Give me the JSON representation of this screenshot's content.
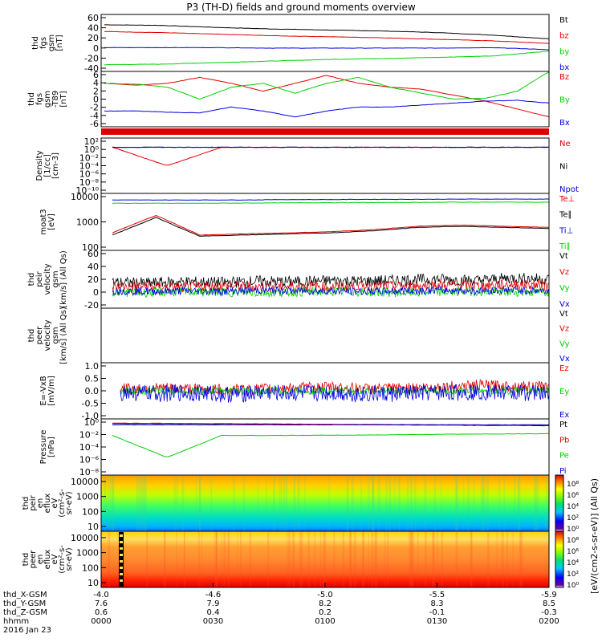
{
  "title": "P3 (TH-D) fields and ground moments overview",
  "date_label": "2016 Jan 23",
  "colorbar_label": "[eV/(cm2-s-sr-eV)] (All Qs)",
  "colors": {
    "black": "#000000",
    "red": "#e00000",
    "green": "#00d000",
    "blue": "#0000e0",
    "frame": "#000000"
  },
  "chart_data": {
    "type": "line",
    "time_ticks": [
      "0000",
      "0030",
      "0100",
      "0130",
      "0200"
    ],
    "ephemeris": {
      "rows": [
        {
          "label": "thd_X-GSM",
          "values": [
            "-4.0",
            "-4.6",
            "-5.0",
            "-5.5",
            "-5.9"
          ]
        },
        {
          "label": "thd_Y-GSM",
          "values": [
            "7.6",
            "7.9",
            "8.2",
            "8.3",
            "8.5"
          ]
        },
        {
          "label": "thd_Z-GSM",
          "values": [
            "0.6",
            "0.4",
            "0.2",
            "-0.1",
            "-0.3"
          ]
        },
        {
          "label": "hhmm",
          "values": [
            "0000",
            "0030",
            "0100",
            "0130",
            "0200"
          ]
        }
      ]
    },
    "panels": [
      {
        "id": "fgs",
        "ylabel": [
          "thd",
          "fgs",
          "gsm",
          "[nT]"
        ],
        "ticks": [
          "60",
          "40",
          "20",
          "0",
          "-20",
          "-40"
        ],
        "ylim": [
          -45,
          65
        ],
        "series": [
          {
            "name": "Bt",
            "color": "black",
            "y": [
              45,
              44,
              40,
              37,
              35,
              33,
              30,
              25,
              18
            ]
          },
          {
            "name": "bz",
            "color": "red",
            "y": [
              32,
              30,
              27,
              24,
              22,
              20,
              17,
              14,
              9
            ]
          },
          {
            "name": "by",
            "color": "green",
            "y": [
              -32,
              -31,
              -28,
              -25,
              -22,
              -20,
              -18,
              -15,
              -6
            ]
          },
          {
            "name": "bx",
            "color": "blue",
            "y": [
              1,
              1,
              1,
              0,
              0,
              0,
              0,
              1,
              -3
            ]
          }
        ]
      },
      {
        "id": "fgs_dsub",
        "ylabel": [
          "thd",
          "fgs",
          "gsm",
          "-T89",
          "[nT]"
        ],
        "ticks": [
          "6",
          "4",
          "2",
          "0",
          "-2",
          "-4",
          "-6"
        ],
        "ylim": [
          -7,
          7
        ],
        "series": [
          {
            "name": "Bz",
            "color": "red",
            "y": [
              4,
              3.5,
              4,
              5.5,
              4,
              2,
              4,
              6,
              4,
              3,
              2.5,
              1,
              -0.5,
              -2.5,
              -4.5
            ]
          },
          {
            "name": "By",
            "color": "green",
            "y": [
              4,
              3.8,
              3,
              0,
              3,
              4,
              1.5,
              4,
              5.5,
              3,
              1.5,
              0,
              0.2,
              2,
              7
            ]
          },
          {
            "name": "Bx",
            "color": "blue",
            "y": [
              -3,
              -3,
              -3.3,
              -3.5,
              -2,
              -3,
              -4.5,
              -3,
              -2,
              -2,
              -1.5,
              -1,
              -0.5,
              -0.3,
              -1
            ]
          }
        ]
      },
      {
        "id": "density",
        "ylabel": [
          "Density",
          "[1/cc]",
          "[cm-3]"
        ],
        "ticks": [
          "10²",
          "10⁰",
          "10⁻²",
          "10⁻⁴",
          "10⁻⁶",
          "10⁻⁸",
          "10⁻¹⁰"
        ],
        "ylim": [
          -10,
          2
        ],
        "series": [
          {
            "name": "Ne",
            "color": "red",
            "y": [
              0,
              -4,
              0,
              0,
              0,
              0,
              0,
              0,
              0
            ]
          },
          {
            "name": "Ni",
            "color": "black",
            "y": [
              0,
              0,
              0,
              0,
              0,
              0,
              0,
              0,
              0
            ]
          },
          {
            "name": "Npot",
            "color": "blue",
            "y": [
              0,
              0,
              0,
              0,
              0,
              0,
              0,
              0,
              0
            ]
          }
        ]
      },
      {
        "id": "temperature",
        "ylabel": [
          "moat3",
          "[eV]"
        ],
        "ticks": [
          "10000",
          "1000",
          "100"
        ],
        "ylim": [
          1.5,
          4.1
        ],
        "series": [
          {
            "name": "Te⊥",
            "color": "red",
            "y": [
              2.3,
              3.1,
              2.2,
              2.25,
              2.3,
              2.35,
              2.45,
              2.6,
              2.65,
              2.6,
              2.55
            ]
          },
          {
            "name": "Te∥",
            "color": "black",
            "y": [
              2.2,
              3.0,
              2.15,
              2.2,
              2.25,
              2.3,
              2.4,
              2.55,
              2.6,
              2.55,
              2.5
            ]
          },
          {
            "name": "Ti⊥",
            "color": "blue",
            "y": [
              3.8,
              3.8,
              3.8,
              3.8,
              3.82,
              3.82,
              3.83,
              3.83,
              3.84,
              3.84,
              3.84
            ]
          },
          {
            "name": "Ti∥",
            "color": "green",
            "y": [
              3.65,
              3.65,
              3.65,
              3.66,
              3.67,
              3.68,
              3.68,
              3.69,
              3.7,
              3.7,
              3.7
            ]
          }
        ]
      },
      {
        "id": "peir_velocity",
        "ylabel": [
          "thd",
          "peir",
          "velocity",
          "gsm",
          "[km/s] (All Qs)"
        ],
        "ticks": [
          "60",
          "40",
          "20",
          "0",
          "-20"
        ],
        "ylim": [
          -25,
          65
        ],
        "series": [
          {
            "name": "Vt",
            "color": "black",
            "y": [
              15,
              14,
              16,
              15,
              17,
              16,
              18,
              17,
              19,
              20,
              18,
              22,
              20
            ]
          },
          {
            "name": "Vz",
            "color": "red",
            "y": [
              8,
              9,
              7,
              10,
              8,
              9,
              8,
              10,
              9,
              11,
              10,
              12,
              10
            ]
          },
          {
            "name": "Vy",
            "color": "green",
            "y": [
              0,
              -1,
              1,
              0,
              -1,
              0,
              1,
              0,
              -1,
              0,
              1,
              0,
              0
            ]
          },
          {
            "name": "Vx",
            "color": "blue",
            "y": [
              2,
              1,
              2,
              1,
              3,
              2,
              2,
              1,
              2,
              3,
              2,
              3,
              2
            ]
          }
        ]
      },
      {
        "id": "peer_velocity",
        "ylabel": [
          "thd",
          "peer",
          "velocity",
          "gsm",
          "[km/s] (All Qs)"
        ],
        "ticks": [],
        "ylim": [
          0,
          1
        ],
        "series": [
          {
            "name": "Vt",
            "color": "black",
            "y": []
          },
          {
            "name": "Vz",
            "color": "red",
            "y": []
          },
          {
            "name": "Vy",
            "color": "green",
            "y": []
          },
          {
            "name": "Vx",
            "color": "blue",
            "y": []
          }
        ]
      },
      {
        "id": "efield",
        "ylabel": [
          "E=-VxB",
          "[mV/m]"
        ],
        "ticks": [
          "1.0",
          "0.5",
          "0.0",
          "-0.5",
          "-1.0"
        ],
        "ylim": [
          -1.5,
          1.5
        ],
        "series": [
          {
            "name": "Ez",
            "color": "red",
            "y": [
              0.1,
              0.15,
              0.1,
              0.05,
              0.1,
              0.15,
              0.2,
              0.1,
              0.15,
              0.2,
              0.3,
              0.25,
              0.2
            ]
          },
          {
            "name": "Ey",
            "color": "green",
            "y": [
              0,
              0,
              0,
              0,
              0,
              0,
              0,
              0,
              0,
              0,
              0,
              0,
              0
            ]
          },
          {
            "name": "Ex",
            "color": "blue",
            "y": [
              -0.1,
              -0.15,
              -0.1,
              -0.2,
              -0.1,
              -0.15,
              -0.1,
              -0.2,
              -0.15,
              -0.1,
              -0.05,
              -0.1,
              -0.1
            ]
          }
        ]
      },
      {
        "id": "pressure",
        "ylabel": [
          "Pressure",
          "[nPa]"
        ],
        "ticks": [
          "10⁰",
          "10⁻²",
          "10⁻⁴",
          "10⁻⁶",
          "10⁻⁸"
        ],
        "ylim": [
          -8.5,
          1
        ],
        "series": [
          {
            "name": "Pt",
            "color": "black",
            "y": [
              0.2,
              0.2,
              0.15,
              0.1,
              0.05,
              0,
              -0.05,
              -0.1,
              -0.15
            ]
          },
          {
            "name": "Pb",
            "color": "red",
            "y": [
              0.3,
              0.25,
              0.2,
              0.15,
              0.1,
              0.05,
              0,
              -0.05,
              -0.1
            ]
          },
          {
            "name": "Pe",
            "color": "green",
            "y": [
              -1.8,
              -5.5,
              -1.8,
              -1.8,
              -1.75,
              -1.7,
              -1.6,
              -1.55,
              -1.5
            ]
          },
          {
            "name": "Pi",
            "color": "blue",
            "y": [
              0,
              0,
              0,
              0,
              0,
              0,
              0,
              0,
              0
            ]
          }
        ]
      }
    ],
    "spectrograms": [
      {
        "id": "peir_en_eflux",
        "ylabel": [
          "thd",
          "peir",
          "en",
          "eflux",
          "eV",
          "(cm²-s-",
          "sr-eV)"
        ],
        "ticks": [
          "10000",
          "1000",
          "100",
          "10"
        ],
        "ylim": [
          1,
          4.2
        ]
      },
      {
        "id": "peer_en_eflux",
        "ylabel": [
          "thd",
          "peer",
          "en",
          "eflux",
          "eV",
          "(cm²-s-",
          "sr-eV)"
        ],
        "ticks": [
          "10000",
          "1000",
          "100",
          "10"
        ],
        "ylim": [
          0.85,
          4.2
        ]
      }
    ],
    "colorbar": {
      "ticks": [
        "10⁸",
        "10⁶",
        "10⁴",
        "10²",
        "10⁰"
      ]
    }
  }
}
